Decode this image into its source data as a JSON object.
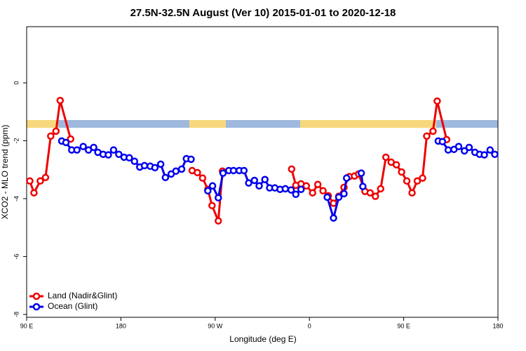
{
  "chart_data": {
    "type": "line",
    "title": "27.5N-32.5N August (Ver 10)   2015-01-01 to 2020-12-18",
    "x_label": "Longitude (deg E)",
    "y_label": "XCO2 - MLO trend (ppm)",
    "xlim": [
      90,
      540
    ],
    "xticks": [
      {
        "value": 90,
        "label": "90 E"
      },
      {
        "value": 180,
        "label": "180"
      },
      {
        "value": 270,
        "label": "90 W"
      },
      {
        "value": 360,
        "label": "0"
      },
      {
        "value": 450,
        "label": "90 E"
      },
      {
        "value": 540,
        "label": "180"
      }
    ],
    "ylim": [
      -8.1,
      1.94
    ],
    "yticks": [
      0,
      -2,
      -4,
      -6,
      -8
    ],
    "legend": "bottom-left",
    "series": [
      {
        "name": "Land (Nadir&Glint)",
        "color": "#ee0000",
        "x": [
          93,
          97,
          103,
          108,
          113,
          118,
          122,
          132,
          null,
          248,
          253,
          258,
          263,
          267,
          273,
          277,
          null,
          343,
          347,
          352,
          357,
          363,
          368,
          373,
          378,
          383,
          388,
          393,
          398,
          403,
          407,
          413,
          418,
          423,
          428,
          433,
          438,
          443,
          448,
          453,
          458,
          463,
          468,
          472,
          478,
          482,
          491
        ],
        "values": [
          -3.39,
          -3.8,
          -3.39,
          -3.27,
          -1.84,
          -1.67,
          -0.61,
          -1.94,
          null,
          -3.03,
          -3.1,
          -3.29,
          -3.68,
          -4.24,
          -4.77,
          -3.05,
          null,
          -2.98,
          -3.54,
          -3.49,
          -3.56,
          -3.8,
          -3.51,
          -3.73,
          -3.9,
          -4.16,
          -3.92,
          -3.61,
          -3.24,
          -3.22,
          -3.15,
          -3.75,
          -3.8,
          -3.92,
          -3.66,
          -2.57,
          -2.74,
          -2.83,
          -3.08,
          -3.39,
          -3.8,
          -3.39,
          -3.29,
          -1.84,
          -1.67,
          -0.63,
          -1.96
        ]
      },
      {
        "name": "Ocean (Glint)",
        "color": "#0000ee",
        "x": [
          123.5,
          127.5,
          133,
          138,
          144,
          149,
          154,
          158,
          163,
          168,
          173,
          178,
          183,
          188,
          193,
          198,
          202.5,
          208,
          212.5,
          218,
          222.5,
          228,
          232.5,
          238,
          242.5,
          247,
          null,
          263,
          267.5,
          273,
          277.5,
          283,
          287.5,
          293,
          297.5,
          302,
          307.5,
          312,
          317.5,
          322,
          327,
          332,
          337,
          342.5,
          347,
          352,
          null,
          377,
          383,
          388,
          393,
          395.5,
          null,
          409.5,
          411,
          null,
          483,
          487,
          492.5,
          498,
          502.5,
          508,
          512.5,
          518,
          522.5,
          527,
          532.5,
          537
        ],
        "values": [
          -2.01,
          -2.06,
          -2.32,
          -2.32,
          -2.2,
          -2.32,
          -2.23,
          -2.4,
          -2.47,
          -2.49,
          -2.32,
          -2.47,
          -2.57,
          -2.59,
          -2.71,
          -2.91,
          -2.86,
          -2.88,
          -2.93,
          -2.81,
          -3.27,
          -3.15,
          -3.05,
          -2.98,
          -2.62,
          -2.64,
          null,
          -3.73,
          -3.56,
          -3.97,
          -3.12,
          -3.03,
          -3.03,
          -3.03,
          -3.03,
          -3.46,
          -3.37,
          -3.56,
          -3.34,
          -3.63,
          -3.63,
          -3.68,
          -3.66,
          -3.7,
          -3.85,
          -3.68,
          null,
          -3.95,
          -4.67,
          -3.95,
          -3.83,
          -3.29,
          null,
          -3.12,
          -3.58,
          null,
          -2.01,
          -2.03,
          -2.32,
          -2.3,
          -2.2,
          -2.35,
          -2.23,
          -2.4,
          -2.47,
          -2.49,
          -2.32,
          -2.47
        ]
      }
    ]
  }
}
